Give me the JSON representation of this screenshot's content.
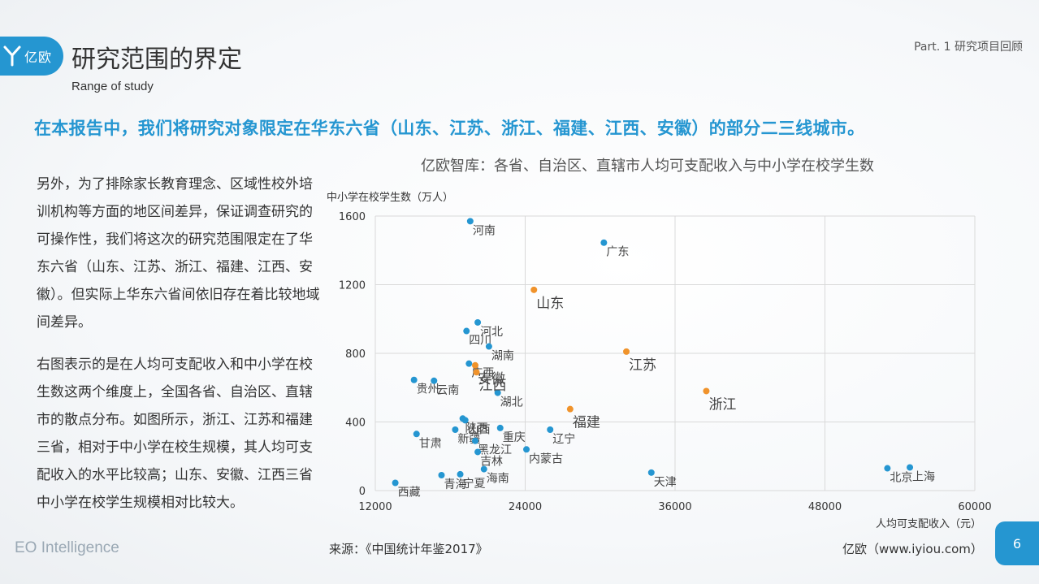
{
  "header": {
    "logo_text": "亿欧",
    "title": "研究范围的界定",
    "subtitle": "Range of study",
    "part_label": "Part. 1 研究项目回顾"
  },
  "headline": "在本报告中，我们将研究对象限定在华东六省（山东、江苏、浙江、福建、江西、安徽）的部分二三线城市。",
  "body": {
    "paragraph1": "另外，为了排除家长教育理念、区域性校外培训机构等方面的地区间差异，保证调查研究的可操作性，我们将这次的研究范围限定在了华东六省（山东、江苏、浙江、福建、江西、安徽）。但实际上华东六省间依旧存在着比较地域间差异。",
    "paragraph2": "右图表示的是在人均可支配收入和中小学在校生数这两个维度上，全国各省、自治区、直辖市的散点分布。如图所示，浙江、江苏和福建三省，相对于中小学在校生规模，其人均可支配收入的水平比较高；山东、安徽、江西三省中小学在校学生规模相对比较大。"
  },
  "colors": {
    "accent": "#2596d1",
    "highlight": "#f0932b",
    "grid": "#d9d9d9"
  },
  "chart_data": {
    "type": "scatter",
    "title": "亿欧智库：各省、自治区、直辖市人均可支配收入与中小学在校学生数",
    "xlabel": "人均可支配收入（元）",
    "ylabel": "中小学在校学生数（万人）",
    "xlim": [
      12000,
      60000
    ],
    "ylim": [
      0,
      1600
    ],
    "xticks": [
      12000,
      24000,
      36000,
      48000,
      60000
    ],
    "yticks": [
      0,
      400,
      800,
      1200,
      1600
    ],
    "grid": true,
    "series": [
      {
        "color": "#2596d1",
        "points": [
          {
            "label": "河南",
            "x": 19600,
            "y": 1570
          },
          {
            "label": "广东",
            "x": 30300,
            "y": 1445
          },
          {
            "label": "河北",
            "x": 20200,
            "y": 980
          },
          {
            "label": "四川",
            "x": 19300,
            "y": 930
          },
          {
            "label": "湖南",
            "x": 21100,
            "y": 840
          },
          {
            "label": "广西",
            "x": 19500,
            "y": 740
          },
          {
            "label": "贵州",
            "x": 15100,
            "y": 645
          },
          {
            "label": "云南",
            "x": 16700,
            "y": 640
          },
          {
            "label": "湖北",
            "x": 21800,
            "y": 570
          },
          {
            "label": "陕西",
            "x": 19000,
            "y": 420
          },
          {
            "label": "山西",
            "x": 19200,
            "y": 410
          },
          {
            "label": "重庆",
            "x": 22000,
            "y": 365
          },
          {
            "label": "辽宁",
            "x": 26000,
            "y": 355
          },
          {
            "label": "新疆",
            "x": 18400,
            "y": 355
          },
          {
            "label": "甘肃",
            "x": 15300,
            "y": 330
          },
          {
            "label": "黑龙江",
            "x": 20000,
            "y": 290
          },
          {
            "label": "吉林",
            "x": 20200,
            "y": 225
          },
          {
            "label": "内蒙古",
            "x": 24100,
            "y": 240
          },
          {
            "label": "海南",
            "x": 20700,
            "y": 125
          },
          {
            "label": "青海",
            "x": 17300,
            "y": 90
          },
          {
            "label": "宁夏",
            "x": 18800,
            "y": 95
          },
          {
            "label": "西藏",
            "x": 13600,
            "y": 45
          },
          {
            "label": "天津",
            "x": 34100,
            "y": 105
          },
          {
            "label": "北京",
            "x": 53000,
            "y": 130
          },
          {
            "label": "上海",
            "x": 54800,
            "y": 135
          }
        ]
      },
      {
        "color": "#f0932b",
        "points": [
          {
            "label": "山东",
            "x": 24700,
            "y": 1170
          },
          {
            "label": "江苏",
            "x": 32100,
            "y": 810
          },
          {
            "label": "安徽",
            "x": 20000,
            "y": 730
          },
          {
            "label": "江西",
            "x": 20100,
            "y": 690
          },
          {
            "label": "浙江",
            "x": 38500,
            "y": 580
          },
          {
            "label": "福建",
            "x": 27600,
            "y": 475
          }
        ]
      }
    ]
  },
  "footer": {
    "brand": "EO Intelligence",
    "source": "来源：《中国统计年鉴2017》",
    "site": "亿欧（www.iyiou.com）",
    "page_number": "6"
  }
}
